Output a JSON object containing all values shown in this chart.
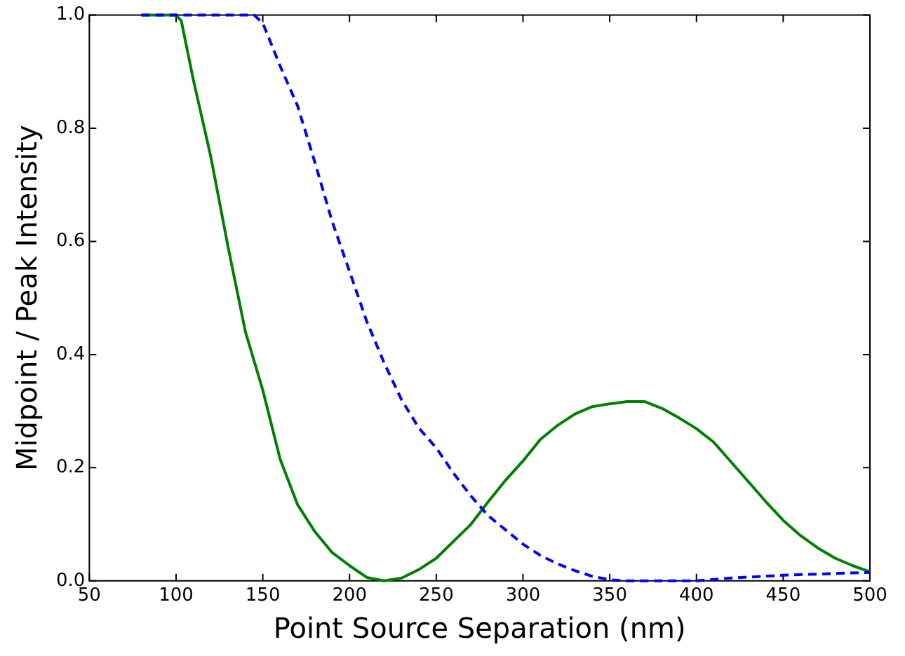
{
  "chart_data": {
    "type": "line",
    "xlabel": "Point Source Separation (nm)",
    "ylabel": "Midpoint / Peak Intensity",
    "xlim": [
      50,
      500
    ],
    "xticks": [
      50,
      100,
      150,
      200,
      250,
      300,
      350,
      400,
      450,
      500
    ],
    "ylim": [
      0,
      1
    ],
    "yticks": [
      {
        "value": 0,
        "label": "0.0"
      },
      {
        "value": 0.2,
        "label": "0.2"
      },
      {
        "value": 0.4,
        "label": "0.4"
      },
      {
        "value": 0.6,
        "label": "0.6"
      },
      {
        "value": 0.8,
        "label": "0.8"
      },
      {
        "value": 1,
        "label": "1.0"
      }
    ],
    "grid": false,
    "legend": false,
    "marker": "none",
    "series": [
      {
        "color": "#008000",
        "line_style": "solid",
        "x": [
          80,
          100,
          103,
          110,
          120,
          130,
          140,
          150,
          160,
          170,
          180,
          190,
          200,
          210,
          220,
          230,
          240,
          250,
          260,
          270,
          280,
          290,
          300,
          310,
          320,
          330,
          340,
          350,
          360,
          370,
          380,
          390,
          400,
          410,
          420,
          430,
          440,
          450,
          460,
          470,
          480,
          490,
          500
        ],
        "values": [
          1,
          1,
          0.99,
          0.885,
          0.75,
          0.59,
          0.44,
          0.337,
          0.215,
          0.135,
          0.087,
          0.05,
          0.027,
          0.006,
          0,
          0.005,
          0.02,
          0.04,
          0.07,
          0.1,
          0.14,
          0.178,
          0.212,
          0.25,
          0.275,
          0.295,
          0.308,
          0.313,
          0.317,
          0.317,
          0.305,
          0.288,
          0.269,
          0.245,
          0.21,
          0.175,
          0.14,
          0.107,
          0.08,
          0.058,
          0.04,
          0.027,
          0.016
        ]
      },
      {
        "color": "#0000ff",
        "line_style": "dashed",
        "x": [
          80,
          100,
          145,
          150,
          160,
          170,
          180,
          190,
          200,
          210,
          220,
          230,
          240,
          250,
          260,
          270,
          280,
          290,
          300,
          310,
          320,
          330,
          340,
          350,
          360,
          400,
          420,
          450,
          500
        ],
        "values": [
          1,
          1,
          1,
          0.986,
          0.91,
          0.84,
          0.74,
          0.635,
          0.547,
          0.458,
          0.385,
          0.32,
          0.27,
          0.235,
          0.19,
          0.15,
          0.115,
          0.09,
          0.065,
          0.045,
          0.03,
          0.018,
          0.008,
          0.002,
          0,
          0,
          0.005,
          0.01,
          0.015
        ]
      }
    ]
  }
}
